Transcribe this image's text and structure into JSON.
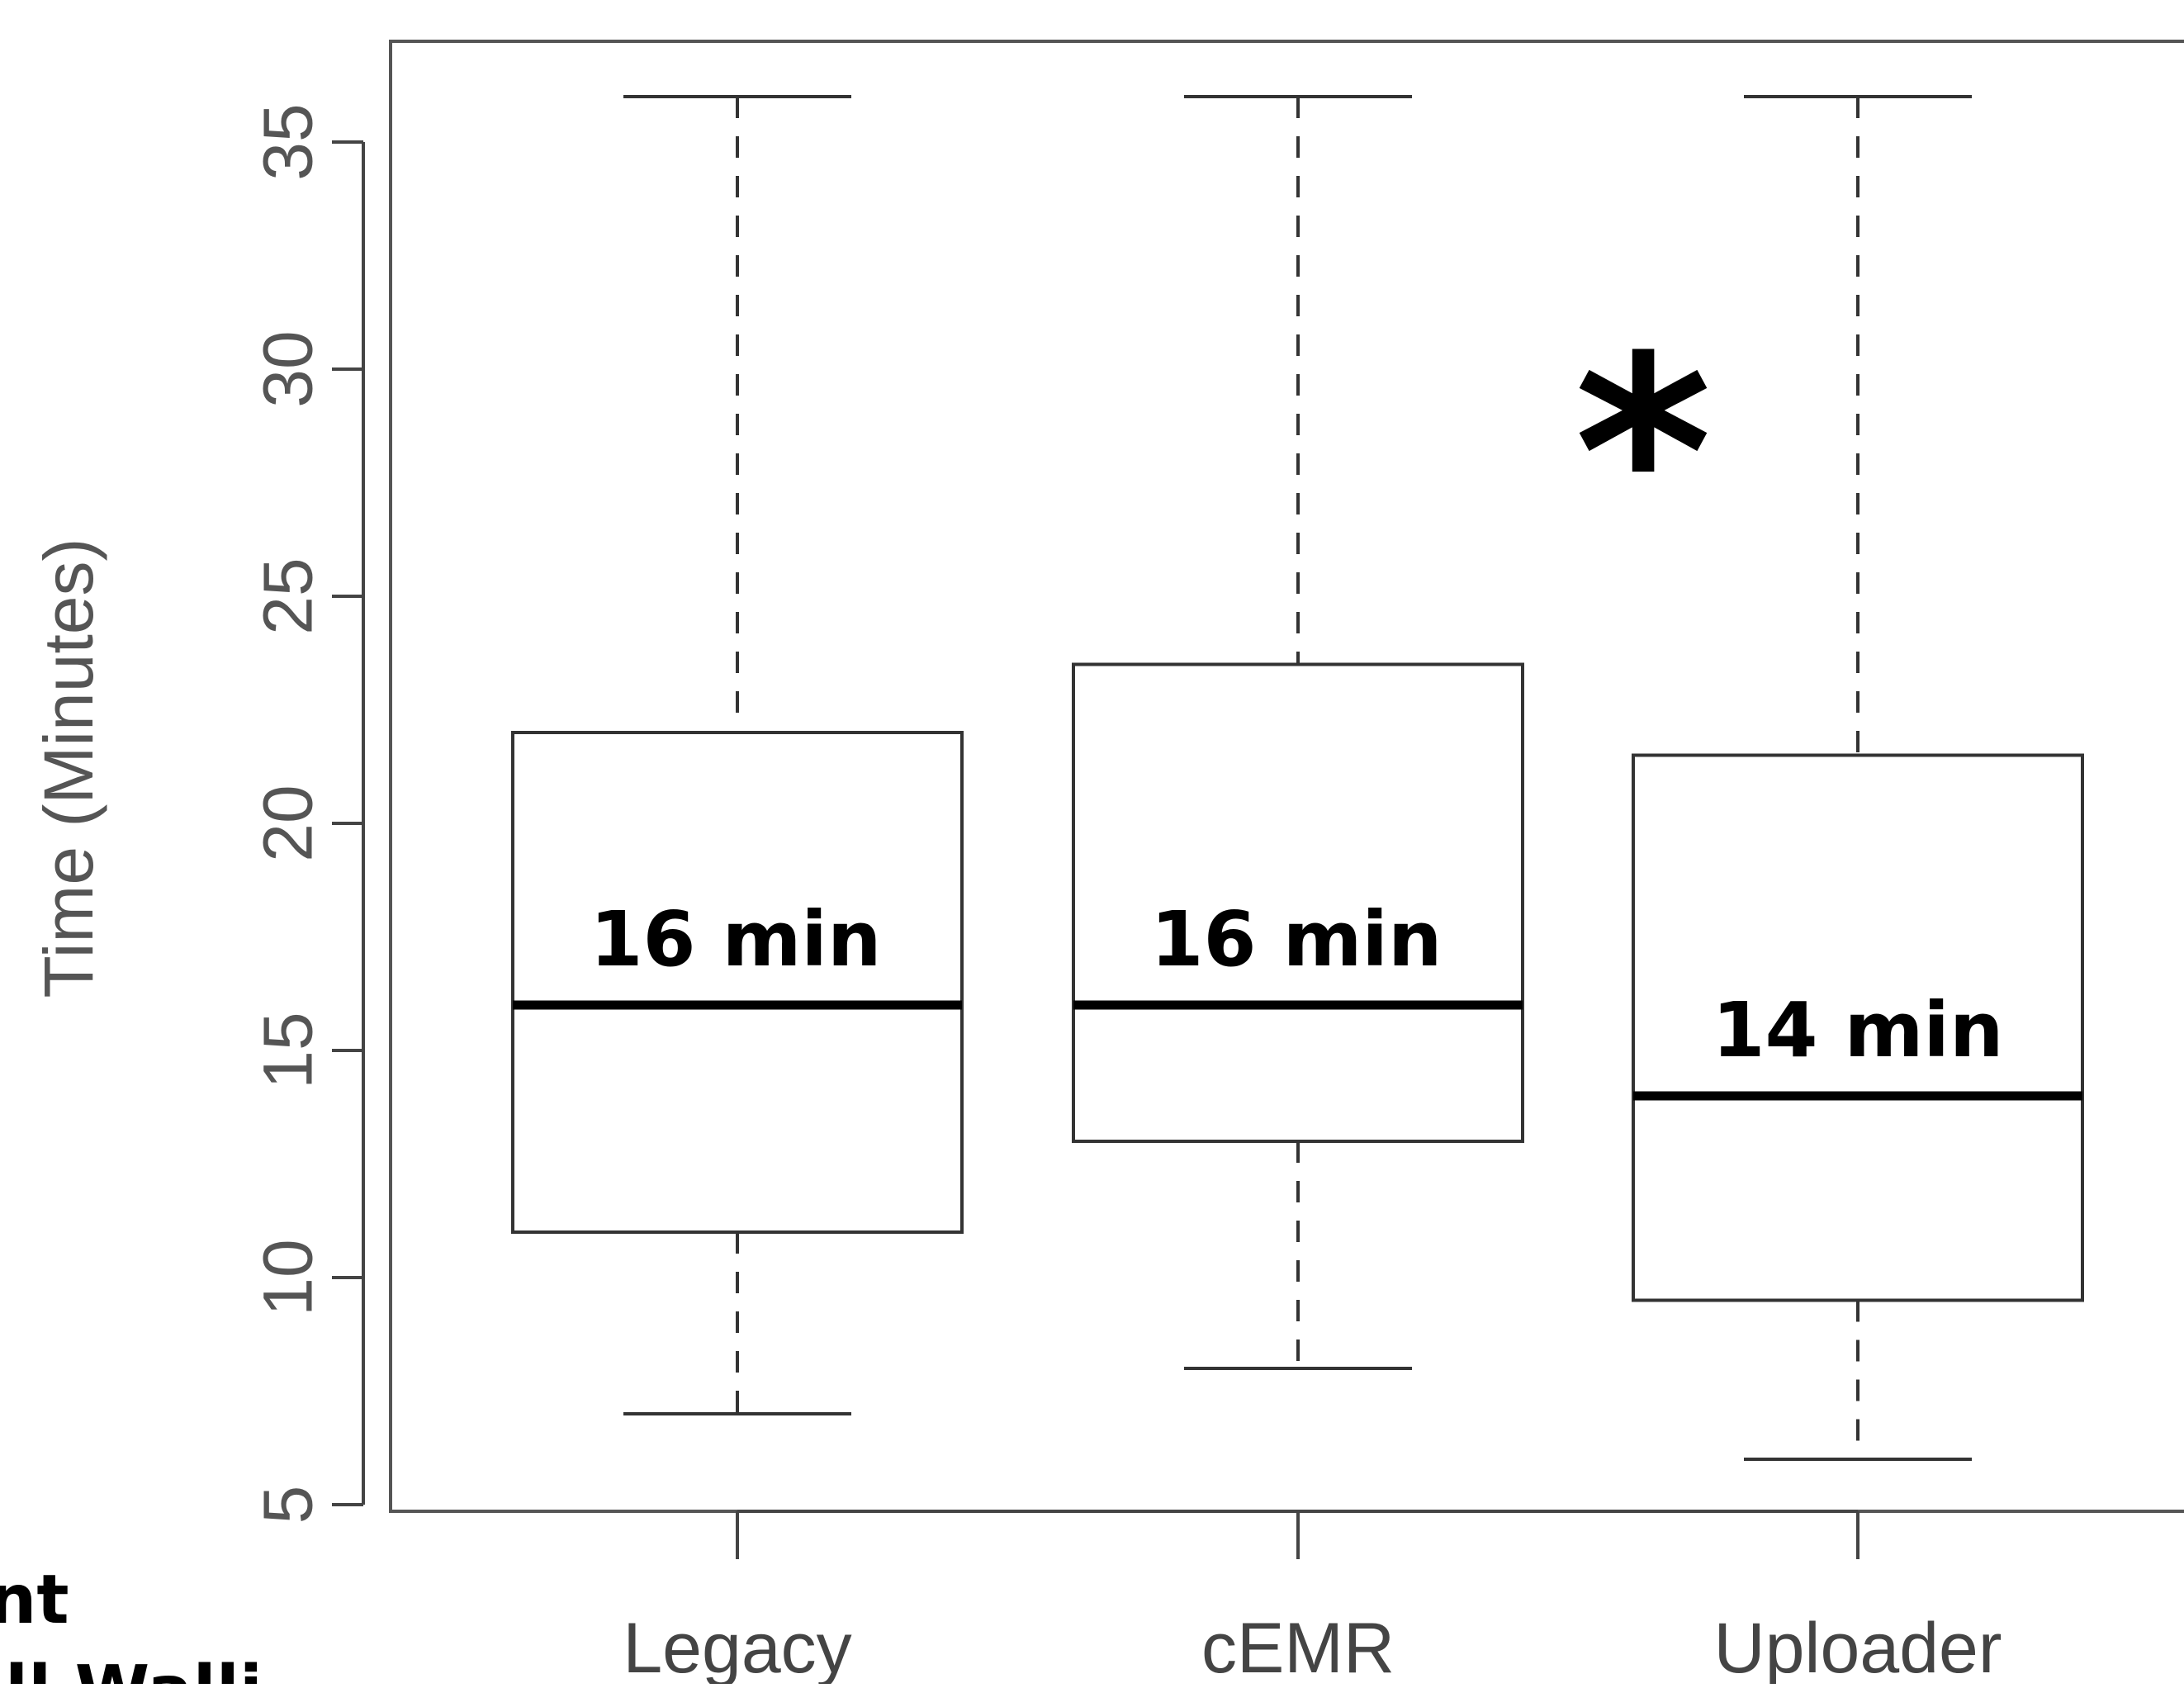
{
  "chart_data": {
    "type": "box",
    "title": "",
    "xlabel": "",
    "ylabel": "Time (Minutes)",
    "ylim": [
      5,
      36.5
    ],
    "yticks": [
      5,
      10,
      15,
      20,
      25,
      30,
      35
    ],
    "grid": false,
    "categories": [
      "Legacy",
      "cEMR",
      "Uploader"
    ],
    "boxes": [
      {
        "category": "Legacy",
        "whisker_low": 7,
        "q1": 11,
        "median": 16,
        "q3": 22,
        "whisker_high": 36,
        "median_label": "16 min"
      },
      {
        "category": "cEMR",
        "whisker_low": 8,
        "q1": 13,
        "median": 16,
        "q3": 23.5,
        "whisker_high": 36,
        "median_label": "16 min"
      },
      {
        "category": "Uploader",
        "whisker_low": 6,
        "q1": 9.5,
        "median": 14,
        "q3": 21.5,
        "whisker_high": 36,
        "median_label": "14 min"
      }
    ],
    "annotations": [
      "*"
    ]
  },
  "cut_off_text": [
    "nt",
    "dall Walli"
  ]
}
